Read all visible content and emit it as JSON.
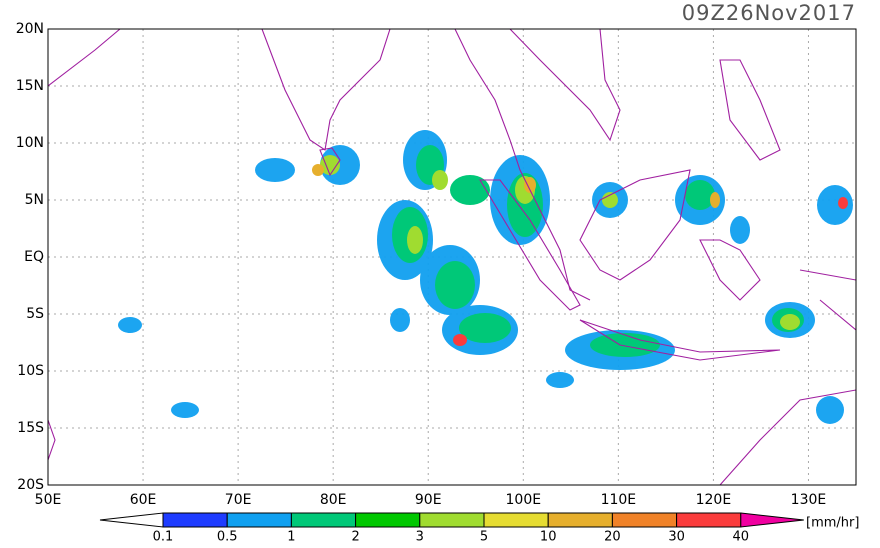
{
  "title": "09Z26Nov2017",
  "map": {
    "xlim": [
      50,
      135
    ],
    "ylim": [
      -20,
      20
    ],
    "lon_ticks": [
      {
        "value": 50,
        "label": "50E"
      },
      {
        "value": 60,
        "label": "60E"
      },
      {
        "value": 70,
        "label": "70E"
      },
      {
        "value": 80,
        "label": "80E"
      },
      {
        "value": 90,
        "label": "90E"
      },
      {
        "value": 100,
        "label": "100E"
      },
      {
        "value": 110,
        "label": "110E"
      },
      {
        "value": 120,
        "label": "120E"
      },
      {
        "value": 130,
        "label": "130E"
      }
    ],
    "lat_ticks": [
      {
        "value": 20,
        "label": "20N"
      },
      {
        "value": 15,
        "label": "15N"
      },
      {
        "value": 10,
        "label": "10N"
      },
      {
        "value": 5,
        "label": "5N"
      },
      {
        "value": 0,
        "label": "EQ"
      },
      {
        "value": -5,
        "label": "5S"
      },
      {
        "value": -10,
        "label": "10S"
      },
      {
        "value": -15,
        "label": "15S"
      },
      {
        "value": -20,
        "label": "20S"
      }
    ],
    "grid": true
  },
  "colorbar": {
    "levels": [
      0.1,
      0.5,
      1,
      2,
      3,
      5,
      10,
      20,
      30,
      40
    ],
    "colors": [
      "#ffffff",
      "#1e3cff",
      "#10a0f0",
      "#00c878",
      "#00c800",
      "#a0dc30",
      "#e6dc32",
      "#e6af2d",
      "#f08228",
      "#fa3c3c",
      "#f000a0"
    ],
    "unit": "[mm/hr]"
  }
}
